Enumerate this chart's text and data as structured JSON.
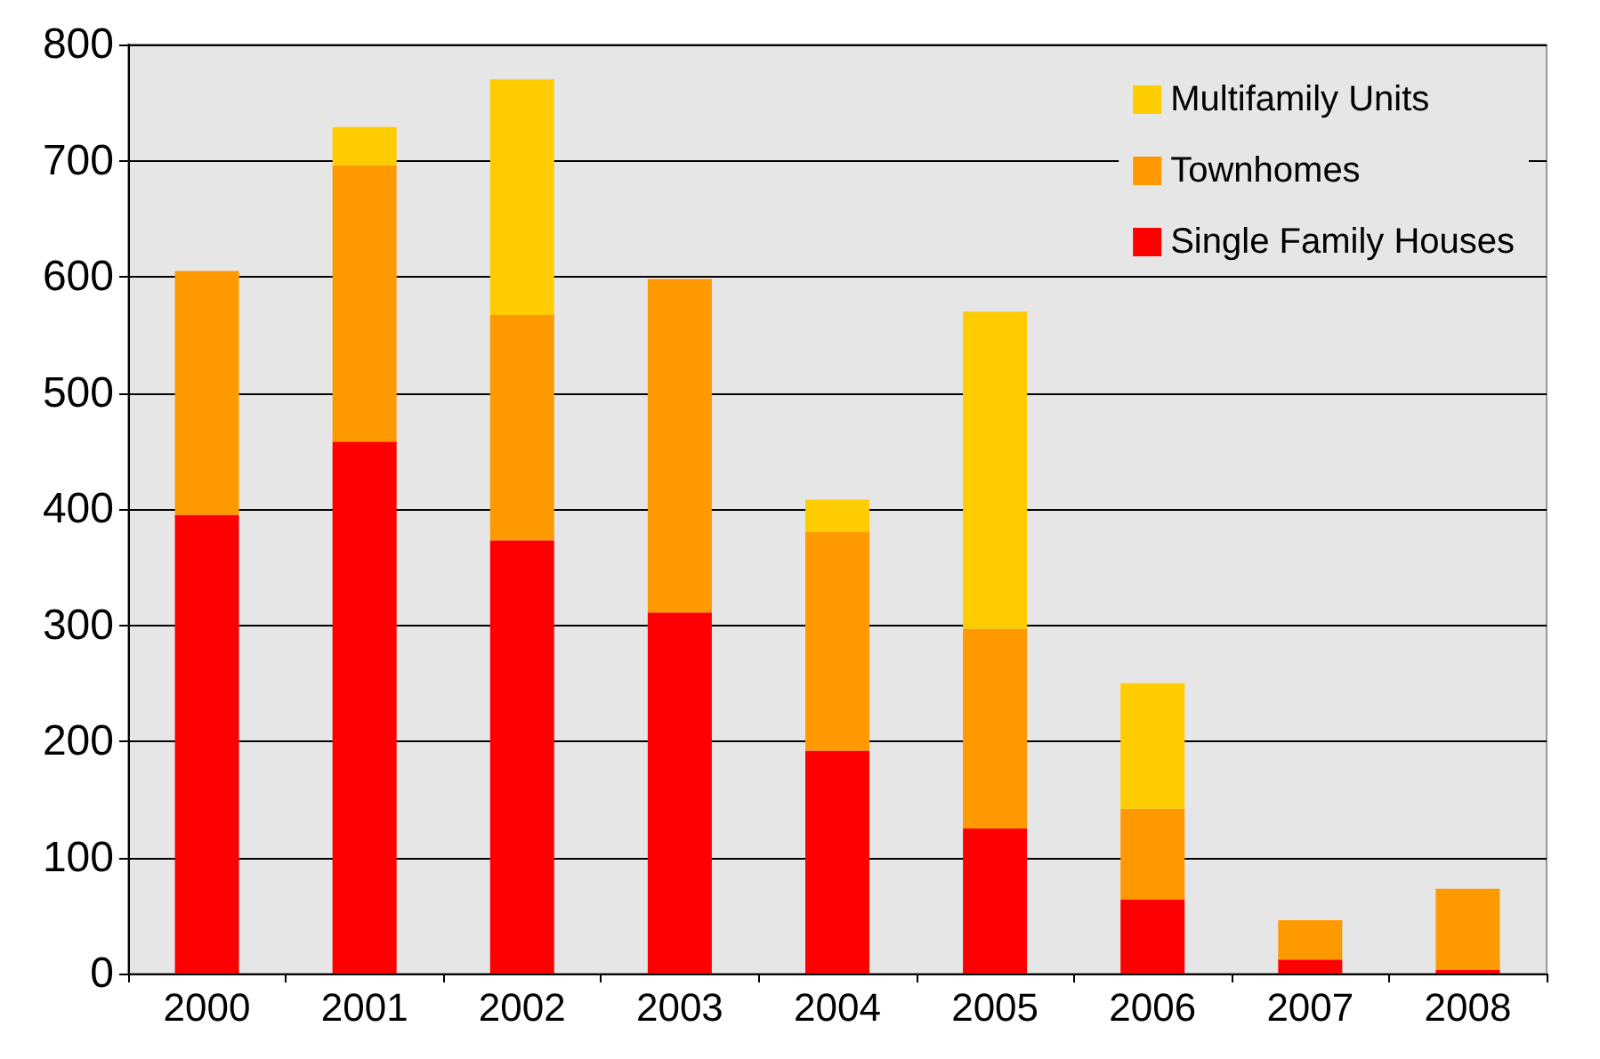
{
  "chart_data": {
    "type": "bar",
    "stacked": true,
    "categories": [
      "2000",
      "2001",
      "2002",
      "2003",
      "2004",
      "2005",
      "2006",
      "2007",
      "2008"
    ],
    "series": [
      {
        "name": "Single Family Houses",
        "color": "#ff0000",
        "values": [
          395,
          458,
          373,
          311,
          192,
          125,
          64,
          12,
          3
        ]
      },
      {
        "name": "Townhomes",
        "color": "#ff9900",
        "values": [
          210,
          238,
          194,
          287,
          188,
          172,
          78,
          34,
          70
        ]
      },
      {
        "name": "Multifamily Units",
        "color": "#ffcc00",
        "values": [
          null,
          33,
          203,
          null,
          28,
          273,
          108,
          null,
          null
        ]
      }
    ],
    "ylim": [
      0,
      800
    ],
    "yticks": [
      0,
      100,
      200,
      300,
      400,
      500,
      600,
      700,
      800
    ],
    "grid": "y",
    "legend": "top right"
  }
}
